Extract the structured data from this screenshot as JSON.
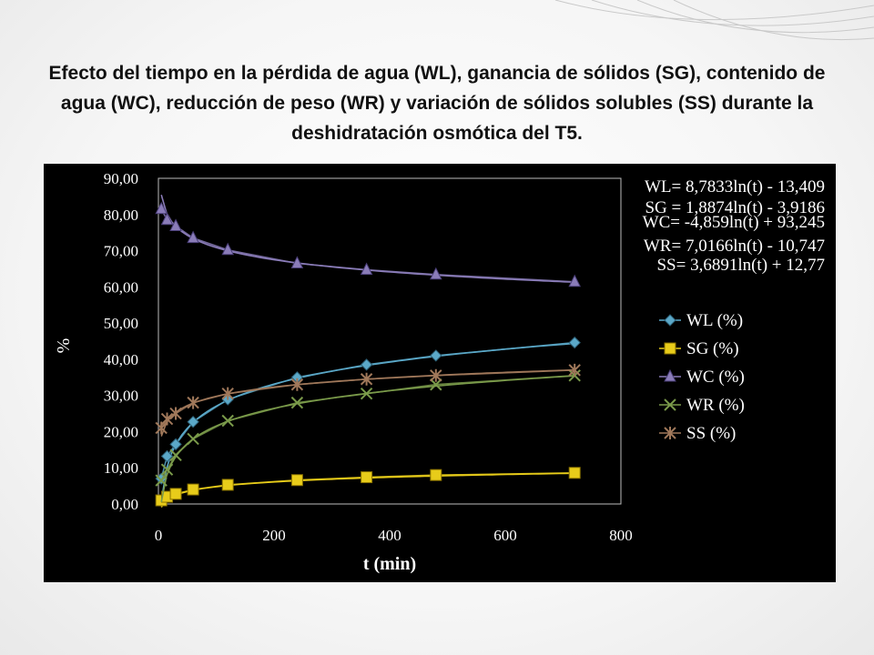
{
  "slide": {
    "title": "Efecto del tiempo en la pérdida de agua (WL), ganancia de sólidos (SG), contenido de agua (WC), reducción de peso (WR) y variación de sólidos solubles (SS) durante la deshidratación osmótica del T5."
  },
  "chart_data": {
    "type": "line",
    "title": "",
    "xlabel": "t (min)",
    "ylabel": "%",
    "xlim": [
      0,
      800
    ],
    "ylim": [
      0,
      90
    ],
    "x_ticks": [
      "0",
      "200",
      "400",
      "600",
      "800"
    ],
    "y_ticks": [
      "0,00",
      "10,00",
      "20,00",
      "30,00",
      "40,00",
      "50,00",
      "60,00",
      "70,00",
      "80,00",
      "90,00"
    ],
    "grid": false,
    "legend_position": "right",
    "equations": [
      "WL= 8,7833ln(t) - 13,409",
      "SG = 1,8874ln(t) - 3,9186",
      "WC= -4,859ln(t) + 93,245",
      "WR= 7,0166ln(t) - 10,747",
      "SS= 3,6891ln(t) + 12,77"
    ],
    "x": [
      5,
      15,
      30,
      60,
      120,
      240,
      360,
      480,
      720
    ],
    "series": [
      {
        "name": "WL (%)",
        "marker": "diamond",
        "color": "#5ba8c8",
        "trend": [
          8.7833,
          -13.409
        ],
        "values": [
          7.0,
          13.2,
          16.5,
          22.7,
          28.9,
          35.0,
          38.5,
          41.0,
          44.6
        ]
      },
      {
        "name": "SG (%)",
        "marker": "square",
        "color": "#e8cc1a",
        "trend": [
          1.8874,
          -3.9186
        ],
        "values": [
          1.0,
          2.0,
          2.8,
          4.0,
          5.3,
          6.6,
          7.4,
          8.0,
          8.6
        ]
      },
      {
        "name": "WC (%)",
        "marker": "triangle",
        "color": "#8a7cb8",
        "trend": [
          -4.859,
          93.245
        ],
        "values": [
          81.5,
          78.5,
          76.8,
          73.5,
          70.2,
          66.5,
          64.7,
          63.4,
          61.4
        ]
      },
      {
        "name": "WR (%)",
        "marker": "x",
        "color": "#7a9a4a",
        "trend": [
          7.0166,
          -10.747
        ],
        "values": [
          6.5,
          9.5,
          13.5,
          18.0,
          23.0,
          28.0,
          30.5,
          33.0,
          35.5
        ]
      },
      {
        "name": "SS (%)",
        "marker": "star",
        "color": "#a0785a",
        "trend": [
          3.6891,
          12.77
        ],
        "values": [
          21.0,
          23.5,
          25.0,
          28.0,
          30.5,
          33.0,
          34.5,
          35.5,
          37.0
        ]
      }
    ]
  }
}
